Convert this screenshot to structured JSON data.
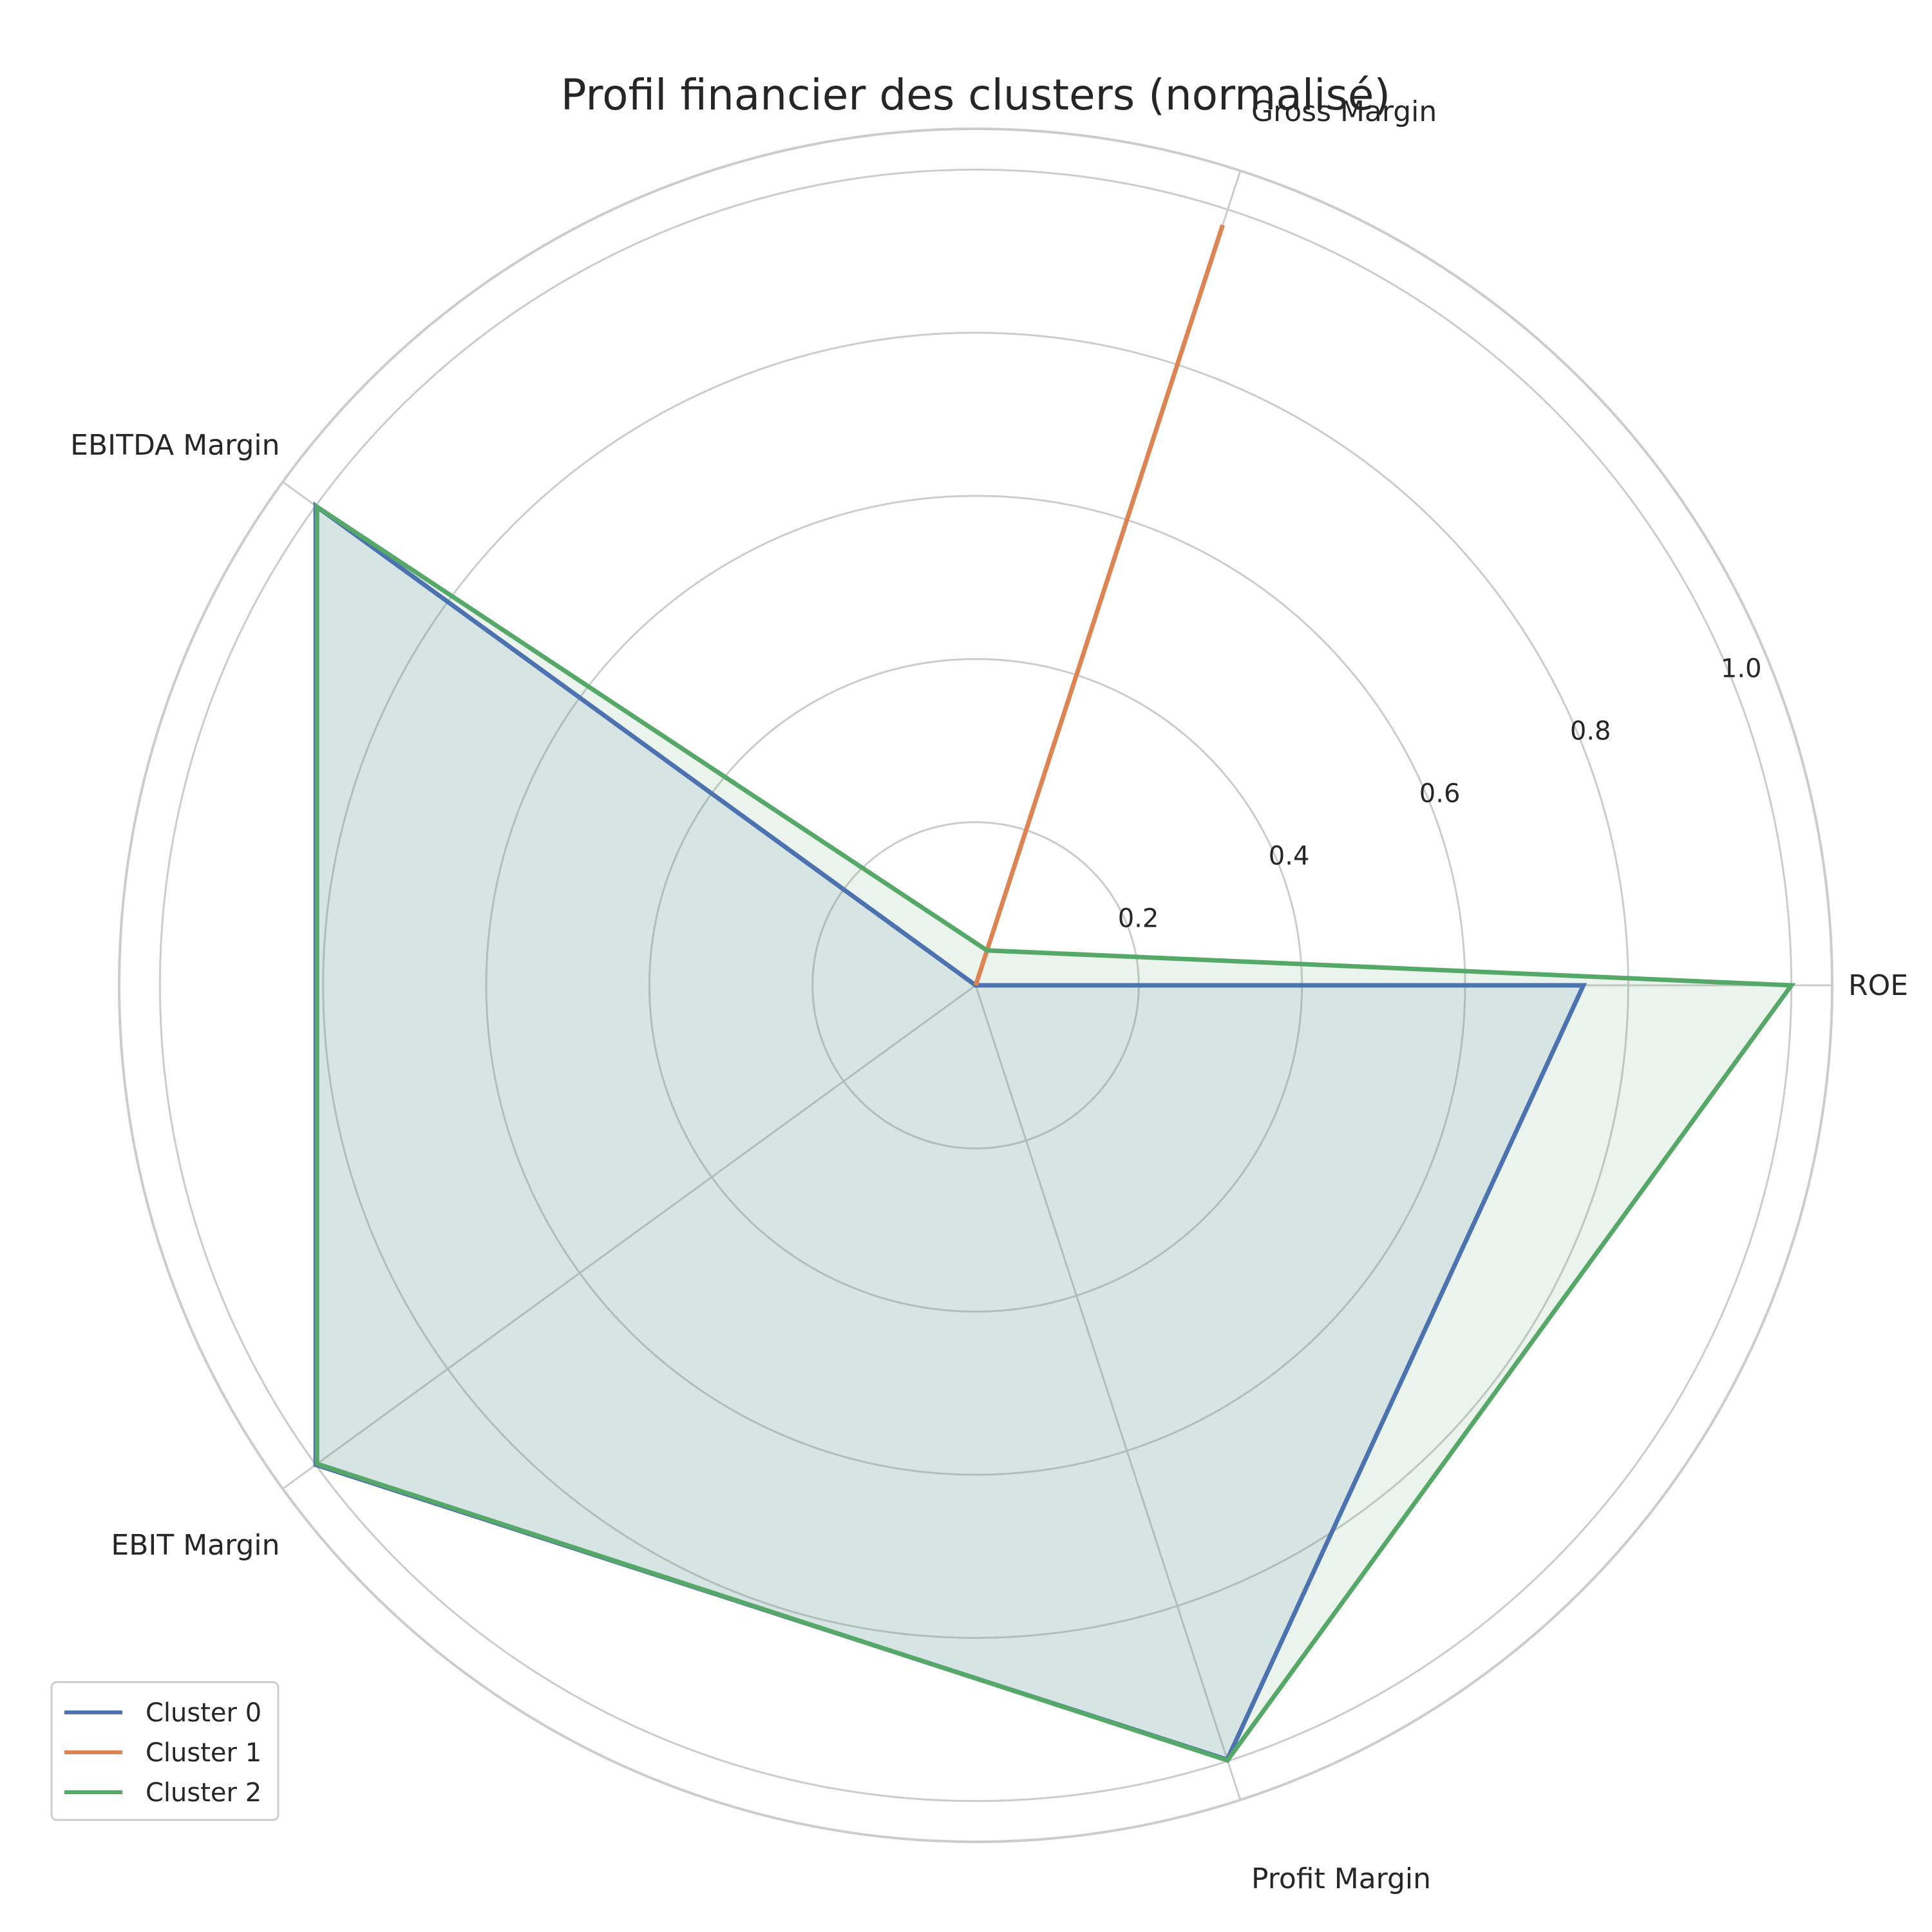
{
  "chart_data": {
    "type": "radar",
    "title": "Profil financier des clusters (normalisé)",
    "axes": [
      "ROE",
      "Gross Margin",
      "EBITDA Margin",
      "EBIT Margin",
      "Profit Margin"
    ],
    "radial_ticks": [
      0.2,
      0.4,
      0.6,
      0.8,
      1.0
    ],
    "radial_tick_labels": [
      "0.2",
      "0.4",
      "0.6",
      "0.8",
      "1.0"
    ],
    "rlim": [
      0,
      1.05
    ],
    "grid": true,
    "legend_position": "lower-left",
    "series": [
      {
        "name": "Cluster 0",
        "color": "#4c72b0",
        "values": [
          0.745,
          0.0,
          1.0,
          1.0,
          0.998
        ]
      },
      {
        "name": "Cluster 1",
        "color": "#dd8452",
        "values": [
          0.0,
          0.98,
          0.0,
          0.0,
          0.0
        ]
      },
      {
        "name": "Cluster 2",
        "color": "#55a868",
        "values": [
          1.0,
          0.045,
          0.998,
          0.998,
          0.999
        ]
      }
    ]
  }
}
